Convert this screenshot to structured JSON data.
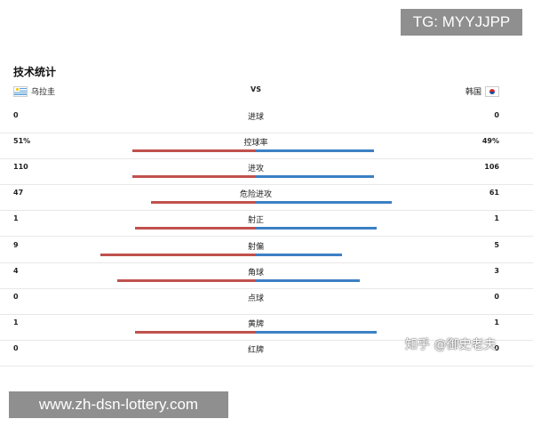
{
  "overlay": {
    "tg_banner": "TG: MYYJJPP",
    "zhihu_watermark": "知乎 @御史老夫",
    "bottom_banner": "www.zh-dsn-lottery.com"
  },
  "section": {
    "title": "技术统计"
  },
  "teams": {
    "home": {
      "name": "乌拉圭",
      "flag": "uruguay-flag-icon"
    },
    "vs": "VS",
    "away": {
      "name": "韩国",
      "flag": "south-korea-flag-icon"
    }
  },
  "colors": {
    "home_bar": "#c0514d",
    "away_bar": "#3c80c4"
  },
  "stats": [
    {
      "label": "进球",
      "home": "0",
      "away": "0"
    },
    {
      "label": "控球率",
      "home": "51%",
      "away": "49%",
      "home_value": 51,
      "away_value": 49
    },
    {
      "label": "进攻",
      "home": "110",
      "away": "106",
      "home_value": 110,
      "away_value": 106
    },
    {
      "label": "危险进攻",
      "home": "47",
      "away": "61",
      "home_value": 47,
      "away_value": 61
    },
    {
      "label": "射正",
      "home": "1",
      "away": "1",
      "home_value": 1,
      "away_value": 1
    },
    {
      "label": "射偏",
      "home": "9",
      "away": "5",
      "home_value": 9,
      "away_value": 5
    },
    {
      "label": "角球",
      "home": "4",
      "away": "3",
      "home_value": 4,
      "away_value": 3
    },
    {
      "label": "点球",
      "home": "0",
      "away": "0"
    },
    {
      "label": "黄牌",
      "home": "1",
      "away": "1",
      "home_value": 1,
      "away_value": 1
    },
    {
      "label": "红牌",
      "home": "0",
      "away": "0"
    }
  ]
}
